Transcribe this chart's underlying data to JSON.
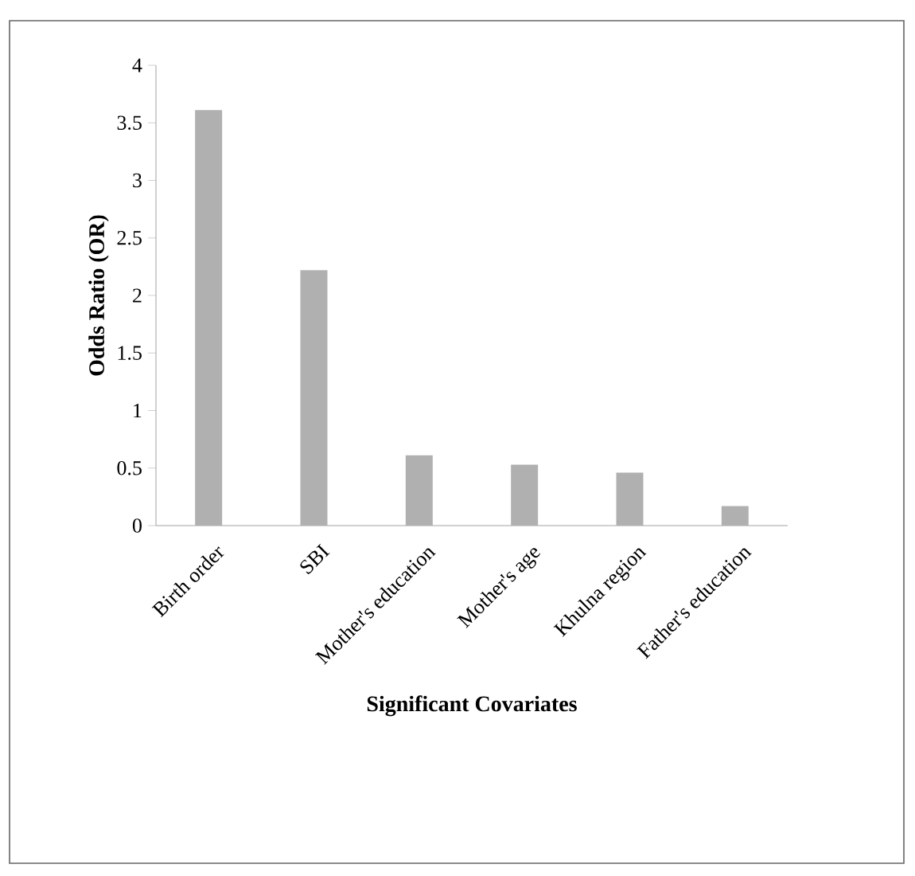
{
  "chart_data": {
    "type": "bar",
    "xlabel": "Significant  Covariates",
    "ylabel": "Odds  Ratio (OR)",
    "categories": [
      "Birth order",
      "SBI",
      "Mother's  education",
      "Mother's  age",
      "Khulna region",
      "Father's education"
    ],
    "values": [
      3.61,
      2.22,
      0.61,
      0.53,
      0.46,
      0.17
    ],
    "color": "#b0b0b0",
    "ylim": [
      0,
      4
    ],
    "yticks": [
      0,
      0.5,
      1,
      1.5,
      2,
      2.5,
      3,
      3.5,
      4
    ],
    "grid": false
  }
}
